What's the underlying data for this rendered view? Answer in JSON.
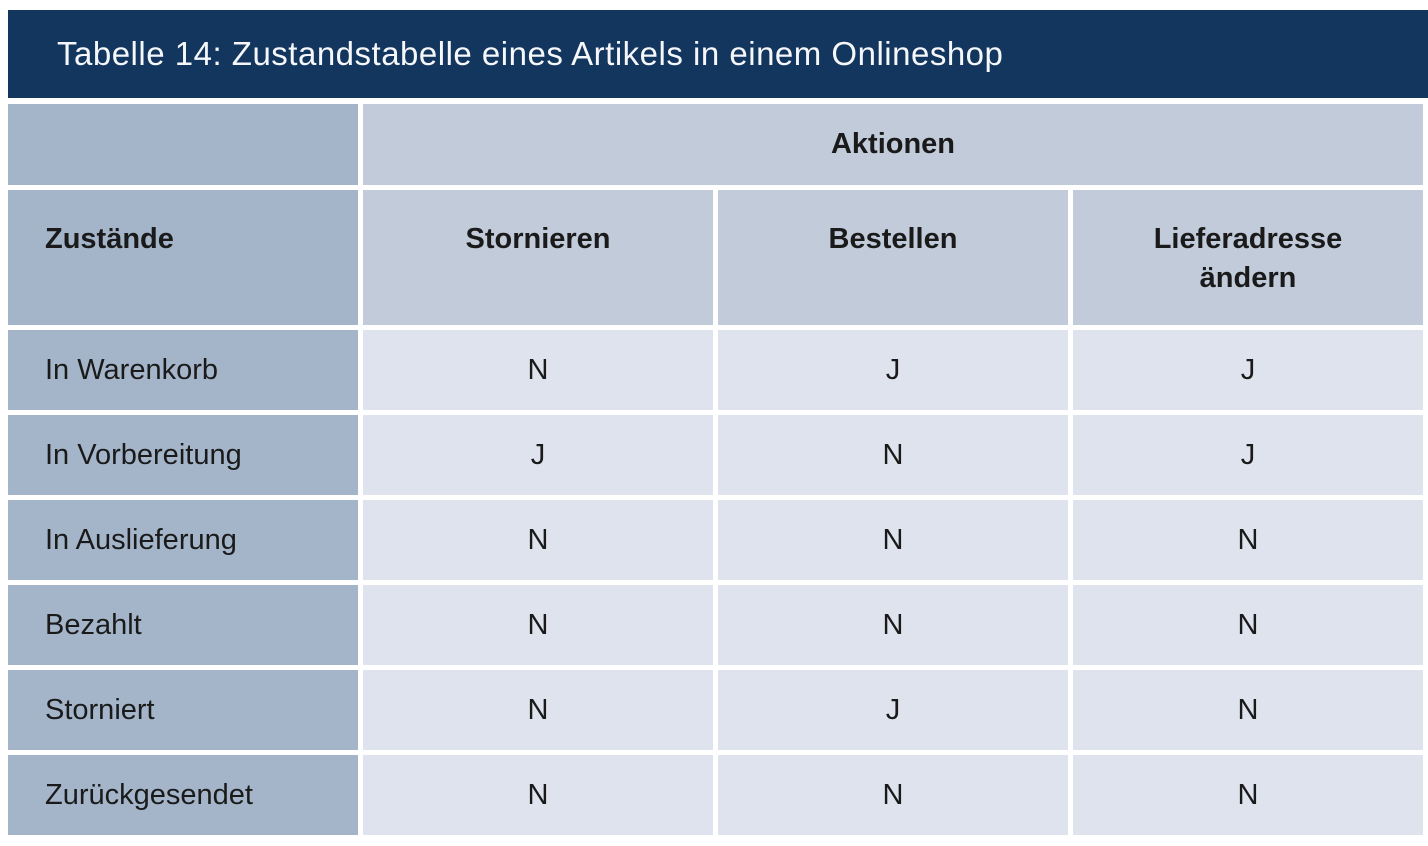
{
  "title_bar": {
    "text": "Tabelle 14: Zustandstabelle eines Artikels in einem Onlineshop"
  },
  "table": {
    "group_header": "Aktionen",
    "row_header_label": "Zustände",
    "action_columns": [
      "Stornieren",
      "Bestellen",
      "Lieferadresse ändern"
    ],
    "rows": [
      {
        "state": "In Warenkorb",
        "values": [
          "N",
          "J",
          "J"
        ]
      },
      {
        "state": "In Vorbereitung",
        "values": [
          "J",
          "N",
          "J"
        ]
      },
      {
        "state": "In Auslieferung",
        "values": [
          "N",
          "N",
          "N"
        ]
      },
      {
        "state": "Bezahlt",
        "values": [
          "N",
          "N",
          "N"
        ]
      },
      {
        "state": "Storniert",
        "values": [
          "N",
          "J",
          "N"
        ]
      },
      {
        "state": "Zurückgesendet",
        "values": [
          "N",
          "N",
          "N"
        ]
      }
    ]
  },
  "colors": {
    "title_bar_bg": "#13365e",
    "title_text": "#f5f7fa",
    "state_cell_bg": "#a4b5ca",
    "header_cell_bg": "#c1cbda",
    "value_cell_bg": "#dee3ed",
    "text": "#1a1a1a"
  }
}
